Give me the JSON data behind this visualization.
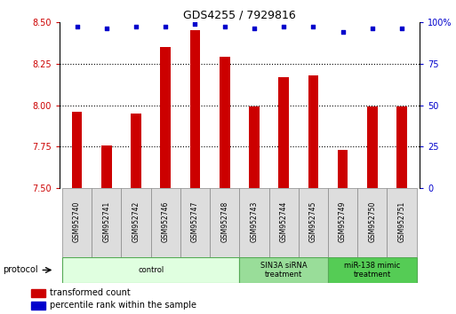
{
  "title": "GDS4255 / 7929816",
  "samples": [
    "GSM952740",
    "GSM952741",
    "GSM952742",
    "GSM952746",
    "GSM952747",
    "GSM952748",
    "GSM952743",
    "GSM952744",
    "GSM952745",
    "GSM952749",
    "GSM952750",
    "GSM952751"
  ],
  "transformed_count": [
    7.96,
    7.76,
    7.95,
    8.35,
    8.45,
    8.29,
    7.99,
    8.17,
    8.18,
    7.73,
    7.99,
    7.99
  ],
  "percentile_rank": [
    97,
    96,
    97,
    97,
    99,
    97,
    96,
    97,
    97,
    94,
    96,
    96
  ],
  "ylim_left": [
    7.5,
    8.5
  ],
  "ylim_right": [
    0,
    100
  ],
  "yticks_left": [
    7.5,
    7.75,
    8.0,
    8.25,
    8.5
  ],
  "yticks_right": [
    0,
    25,
    50,
    75,
    100
  ],
  "ytick_labels_right": [
    "0",
    "25",
    "50",
    "75",
    "100%"
  ],
  "groups": [
    {
      "label": "control",
      "start": 0,
      "end": 6,
      "color": "#e0ffe0",
      "edge_color": "#55aa55"
    },
    {
      "label": "SIN3A siRNA\ntreatment",
      "start": 6,
      "end": 9,
      "color": "#99dd99",
      "edge_color": "#55aa55"
    },
    {
      "label": "miR-138 mimic\ntreatment",
      "start": 9,
      "end": 12,
      "color": "#55cc55",
      "edge_color": "#55aa55"
    }
  ],
  "bar_color": "#cc0000",
  "dot_color": "#0000cc",
  "bar_width": 0.35,
  "grid_color": "#000000",
  "bg_color": "#ffffff",
  "left_label_color": "#cc0000",
  "right_label_color": "#0000cc",
  "legend_bar_label": "transformed count",
  "legend_dot_label": "percentile rank within the sample",
  "protocol_label": "protocol",
  "tick_label_fontsize": 7,
  "axis_label_fontsize": 8,
  "gridlines": [
    7.75,
    8.0,
    8.25
  ]
}
